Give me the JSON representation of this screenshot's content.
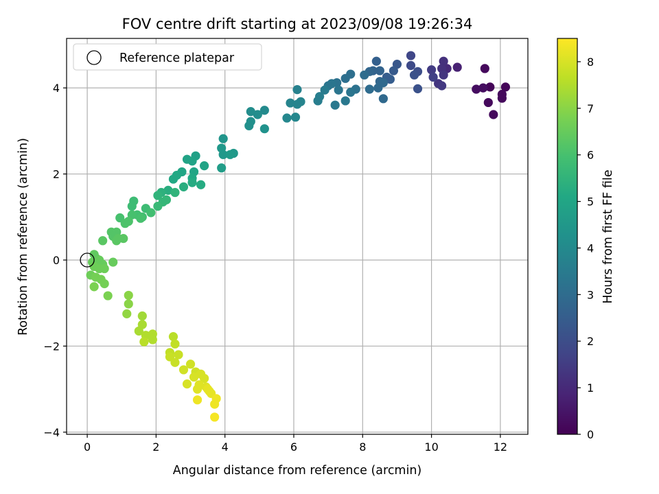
{
  "chart_data": {
    "type": "scatter",
    "title": "FOV centre drift starting at 2023/09/08 19:26:34",
    "xlabel": "Angular distance from reference (arcmin)",
    "ylabel": "Rotation from reference (arcmin)",
    "xlim": [
      -0.6,
      12.8
    ],
    "ylim": [
      -4.05,
      5.15
    ],
    "xticks": [
      0,
      2,
      4,
      6,
      8,
      10,
      12
    ],
    "yticks": [
      -4,
      -2,
      0,
      2,
      4
    ],
    "xtick_labels": [
      "0",
      "2",
      "4",
      "6",
      "8",
      "10",
      "12"
    ],
    "ytick_labels": [
      "−4",
      "−2",
      "0",
      "2",
      "4"
    ],
    "grid": true,
    "colormap": "viridis",
    "colorbar": {
      "label": "Hours from first FF file",
      "range": [
        0,
        8.5
      ],
      "ticks": [
        0,
        1,
        2,
        3,
        4,
        5,
        6,
        7,
        8
      ],
      "tick_labels": [
        "0",
        "1",
        "2",
        "3",
        "4",
        "5",
        "6",
        "7",
        "8"
      ]
    },
    "legend": {
      "position": "top-left",
      "entries": [
        "Reference platepar"
      ]
    },
    "reference_point": {
      "x": 0,
      "y": 0,
      "marker": "open-circle"
    },
    "points": [
      {
        "x": 11.7,
        "y": 4.02,
        "t": 0.1
      },
      {
        "x": 12.15,
        "y": 4.02,
        "t": 0.1
      },
      {
        "x": 11.55,
        "y": 4.45,
        "t": 0.2
      },
      {
        "x": 11.5,
        "y": 4.0,
        "t": 0.3
      },
      {
        "x": 11.3,
        "y": 3.97,
        "t": 0.3
      },
      {
        "x": 11.65,
        "y": 3.66,
        "t": 0.2
      },
      {
        "x": 11.8,
        "y": 3.38,
        "t": 0.2
      },
      {
        "x": 12.05,
        "y": 3.76,
        "t": 0.2
      },
      {
        "x": 12.05,
        "y": 3.85,
        "t": 0.2
      },
      {
        "x": 10.75,
        "y": 4.48,
        "t": 0.8
      },
      {
        "x": 10.45,
        "y": 4.45,
        "t": 1.0
      },
      {
        "x": 10.35,
        "y": 4.62,
        "t": 1.2
      },
      {
        "x": 10.3,
        "y": 4.45,
        "t": 1.2
      },
      {
        "x": 10.35,
        "y": 4.3,
        "t": 1.3
      },
      {
        "x": 10.2,
        "y": 4.1,
        "t": 1.3
      },
      {
        "x": 10.3,
        "y": 4.05,
        "t": 1.4
      },
      {
        "x": 10.0,
        "y": 4.42,
        "t": 1.5
      },
      {
        "x": 10.05,
        "y": 4.25,
        "t": 1.6
      },
      {
        "x": 9.4,
        "y": 4.75,
        "t": 1.8
      },
      {
        "x": 9.4,
        "y": 4.52,
        "t": 1.9
      },
      {
        "x": 9.6,
        "y": 4.38,
        "t": 2.0
      },
      {
        "x": 9.5,
        "y": 4.3,
        "t": 2.1
      },
      {
        "x": 9.6,
        "y": 3.98,
        "t": 2.1
      },
      {
        "x": 9.0,
        "y": 4.55,
        "t": 2.3
      },
      {
        "x": 8.9,
        "y": 4.4,
        "t": 2.4
      },
      {
        "x": 8.8,
        "y": 4.2,
        "t": 2.5
      },
      {
        "x": 8.7,
        "y": 4.25,
        "t": 2.5
      },
      {
        "x": 8.4,
        "y": 4.62,
        "t": 2.6
      },
      {
        "x": 8.5,
        "y": 4.4,
        "t": 2.7
      },
      {
        "x": 8.3,
        "y": 4.4,
        "t": 2.7
      },
      {
        "x": 8.2,
        "y": 4.38,
        "t": 2.8
      },
      {
        "x": 8.5,
        "y": 4.15,
        "t": 2.8
      },
      {
        "x": 8.45,
        "y": 4.0,
        "t": 2.9
      },
      {
        "x": 8.6,
        "y": 3.75,
        "t": 2.9
      },
      {
        "x": 8.2,
        "y": 3.97,
        "t": 3.0
      },
      {
        "x": 8.6,
        "y": 4.12,
        "t": 2.9
      },
      {
        "x": 8.05,
        "y": 4.3,
        "t": 3.0
      },
      {
        "x": 7.65,
        "y": 4.32,
        "t": 3.1
      },
      {
        "x": 7.5,
        "y": 4.22,
        "t": 3.1
      },
      {
        "x": 7.25,
        "y": 4.12,
        "t": 3.2
      },
      {
        "x": 7.1,
        "y": 4.1,
        "t": 3.3
      },
      {
        "x": 7.0,
        "y": 4.05,
        "t": 3.3
      },
      {
        "x": 7.8,
        "y": 3.97,
        "t": 3.2
      },
      {
        "x": 7.65,
        "y": 3.9,
        "t": 3.3
      },
      {
        "x": 7.3,
        "y": 3.95,
        "t": 3.3
      },
      {
        "x": 7.2,
        "y": 3.6,
        "t": 3.4
      },
      {
        "x": 7.5,
        "y": 3.7,
        "t": 3.4
      },
      {
        "x": 6.9,
        "y": 3.95,
        "t": 3.5
      },
      {
        "x": 6.75,
        "y": 3.8,
        "t": 3.6
      },
      {
        "x": 6.7,
        "y": 3.7,
        "t": 3.6
      },
      {
        "x": 6.1,
        "y": 3.96,
        "t": 3.7
      },
      {
        "x": 5.9,
        "y": 3.65,
        "t": 3.8
      },
      {
        "x": 6.2,
        "y": 3.68,
        "t": 3.8
      },
      {
        "x": 6.1,
        "y": 3.62,
        "t": 3.8
      },
      {
        "x": 5.8,
        "y": 3.3,
        "t": 3.9
      },
      {
        "x": 6.05,
        "y": 3.32,
        "t": 3.9
      },
      {
        "x": 5.15,
        "y": 3.48,
        "t": 4.0
      },
      {
        "x": 4.95,
        "y": 3.38,
        "t": 4.1
      },
      {
        "x": 4.75,
        "y": 3.45,
        "t": 4.1
      },
      {
        "x": 4.75,
        "y": 3.22,
        "t": 4.2
      },
      {
        "x": 4.7,
        "y": 3.12,
        "t": 4.2
      },
      {
        "x": 5.15,
        "y": 3.05,
        "t": 4.3
      },
      {
        "x": 3.95,
        "y": 2.82,
        "t": 4.4
      },
      {
        "x": 3.9,
        "y": 2.6,
        "t": 4.5
      },
      {
        "x": 3.95,
        "y": 2.45,
        "t": 4.5
      },
      {
        "x": 4.25,
        "y": 2.48,
        "t": 4.5
      },
      {
        "x": 4.15,
        "y": 2.45,
        "t": 4.6
      },
      {
        "x": 3.9,
        "y": 2.14,
        "t": 4.7
      },
      {
        "x": 3.15,
        "y": 2.42,
        "t": 4.8
      },
      {
        "x": 2.9,
        "y": 2.34,
        "t": 4.9
      },
      {
        "x": 3.05,
        "y": 2.3,
        "t": 4.9
      },
      {
        "x": 3.4,
        "y": 2.19,
        "t": 4.9
      },
      {
        "x": 3.1,
        "y": 2.05,
        "t": 5.0
      },
      {
        "x": 2.75,
        "y": 2.05,
        "t": 5.0
      },
      {
        "x": 2.6,
        "y": 1.97,
        "t": 5.1
      },
      {
        "x": 2.5,
        "y": 1.88,
        "t": 5.1
      },
      {
        "x": 3.05,
        "y": 1.9,
        "t": 5.1
      },
      {
        "x": 3.05,
        "y": 1.8,
        "t": 5.2
      },
      {
        "x": 3.3,
        "y": 1.75,
        "t": 5.2
      },
      {
        "x": 2.8,
        "y": 1.7,
        "t": 5.3
      },
      {
        "x": 2.35,
        "y": 1.62,
        "t": 5.3
      },
      {
        "x": 2.15,
        "y": 1.57,
        "t": 5.4
      },
      {
        "x": 2.05,
        "y": 1.5,
        "t": 5.5
      },
      {
        "x": 2.55,
        "y": 1.57,
        "t": 5.5
      },
      {
        "x": 2.3,
        "y": 1.4,
        "t": 5.6
      },
      {
        "x": 2.2,
        "y": 1.35,
        "t": 5.6
      },
      {
        "x": 2.05,
        "y": 1.25,
        "t": 5.7
      },
      {
        "x": 1.35,
        "y": 1.37,
        "t": 5.8
      },
      {
        "x": 1.3,
        "y": 1.25,
        "t": 5.8
      },
      {
        "x": 1.7,
        "y": 1.2,
        "t": 5.8
      },
      {
        "x": 1.85,
        "y": 1.1,
        "t": 5.9
      },
      {
        "x": 1.45,
        "y": 1.05,
        "t": 5.9
      },
      {
        "x": 1.6,
        "y": 1.0,
        "t": 5.9
      },
      {
        "x": 1.3,
        "y": 1.05,
        "t": 6.0
      },
      {
        "x": 0.95,
        "y": 0.98,
        "t": 6.0
      },
      {
        "x": 1.55,
        "y": 0.97,
        "t": 6.0
      },
      {
        "x": 1.2,
        "y": 0.9,
        "t": 6.1
      },
      {
        "x": 1.1,
        "y": 0.85,
        "t": 6.1
      },
      {
        "x": 0.7,
        "y": 0.65,
        "t": 6.2
      },
      {
        "x": 0.85,
        "y": 0.65,
        "t": 6.2
      },
      {
        "x": 0.75,
        "y": 0.55,
        "t": 6.2
      },
      {
        "x": 0.9,
        "y": 0.5,
        "t": 6.3
      },
      {
        "x": 1.05,
        "y": 0.5,
        "t": 6.3
      },
      {
        "x": 0.45,
        "y": 0.45,
        "t": 6.3
      },
      {
        "x": 0.85,
        "y": 0.45,
        "t": 6.3
      },
      {
        "x": 0.2,
        "y": 0.13,
        "t": 6.4
      },
      {
        "x": 0.25,
        "y": 0.05,
        "t": 6.4
      },
      {
        "x": 0.35,
        "y": 0.0,
        "t": 6.5
      },
      {
        "x": 0.15,
        "y": -0.05,
        "t": 6.5
      },
      {
        "x": 0.3,
        "y": -0.05,
        "t": 6.5
      },
      {
        "x": 0.45,
        "y": -0.1,
        "t": 6.5
      },
      {
        "x": 0.75,
        "y": -0.05,
        "t": 6.5
      },
      {
        "x": 0.2,
        "y": -0.15,
        "t": 6.6
      },
      {
        "x": 0.35,
        "y": -0.2,
        "t": 6.6
      },
      {
        "x": 0.5,
        "y": -0.2,
        "t": 6.6
      },
      {
        "x": 0.1,
        "y": -0.35,
        "t": 6.6
      },
      {
        "x": 0.25,
        "y": -0.4,
        "t": 6.7
      },
      {
        "x": 0.4,
        "y": -0.45,
        "t": 6.7
      },
      {
        "x": 0.5,
        "y": -0.55,
        "t": 6.7
      },
      {
        "x": 0.2,
        "y": -0.62,
        "t": 6.8
      },
      {
        "x": 0.6,
        "y": -0.83,
        "t": 6.8
      },
      {
        "x": 1.2,
        "y": -0.82,
        "t": 7.0
      },
      {
        "x": 1.2,
        "y": -1.02,
        "t": 7.0
      },
      {
        "x": 1.15,
        "y": -1.25,
        "t": 7.1
      },
      {
        "x": 1.6,
        "y": -1.3,
        "t": 7.3
      },
      {
        "x": 1.6,
        "y": -1.5,
        "t": 7.4
      },
      {
        "x": 1.5,
        "y": -1.65,
        "t": 7.4
      },
      {
        "x": 1.9,
        "y": -1.72,
        "t": 7.5
      },
      {
        "x": 1.7,
        "y": -1.75,
        "t": 7.5
      },
      {
        "x": 1.9,
        "y": -1.85,
        "t": 7.5
      },
      {
        "x": 1.65,
        "y": -1.9,
        "t": 7.6
      },
      {
        "x": 2.5,
        "y": -1.78,
        "t": 7.6
      },
      {
        "x": 2.55,
        "y": -1.95,
        "t": 7.7
      },
      {
        "x": 2.4,
        "y": -2.15,
        "t": 7.7
      },
      {
        "x": 2.65,
        "y": -2.2,
        "t": 7.8
      },
      {
        "x": 2.4,
        "y": -2.25,
        "t": 7.8
      },
      {
        "x": 2.55,
        "y": -2.38,
        "t": 7.8
      },
      {
        "x": 3.0,
        "y": -2.42,
        "t": 7.9
      },
      {
        "x": 2.8,
        "y": -2.55,
        "t": 7.9
      },
      {
        "x": 3.15,
        "y": -2.6,
        "t": 7.9
      },
      {
        "x": 3.3,
        "y": -2.65,
        "t": 8.0
      },
      {
        "x": 3.1,
        "y": -2.72,
        "t": 8.0
      },
      {
        "x": 3.4,
        "y": -2.75,
        "t": 8.0
      },
      {
        "x": 2.9,
        "y": -2.88,
        "t": 8.0
      },
      {
        "x": 3.25,
        "y": -2.9,
        "t": 8.1
      },
      {
        "x": 3.45,
        "y": -2.95,
        "t": 8.1
      },
      {
        "x": 3.2,
        "y": -3.0,
        "t": 8.1
      },
      {
        "x": 3.5,
        "y": -3.0,
        "t": 8.2
      },
      {
        "x": 3.55,
        "y": -3.05,
        "t": 8.2
      },
      {
        "x": 3.6,
        "y": -3.1,
        "t": 8.2
      },
      {
        "x": 3.75,
        "y": -3.22,
        "t": 8.3
      },
      {
        "x": 3.2,
        "y": -3.25,
        "t": 8.3
      },
      {
        "x": 3.7,
        "y": -3.35,
        "t": 8.3
      },
      {
        "x": 3.7,
        "y": -3.65,
        "t": 8.4
      }
    ]
  }
}
